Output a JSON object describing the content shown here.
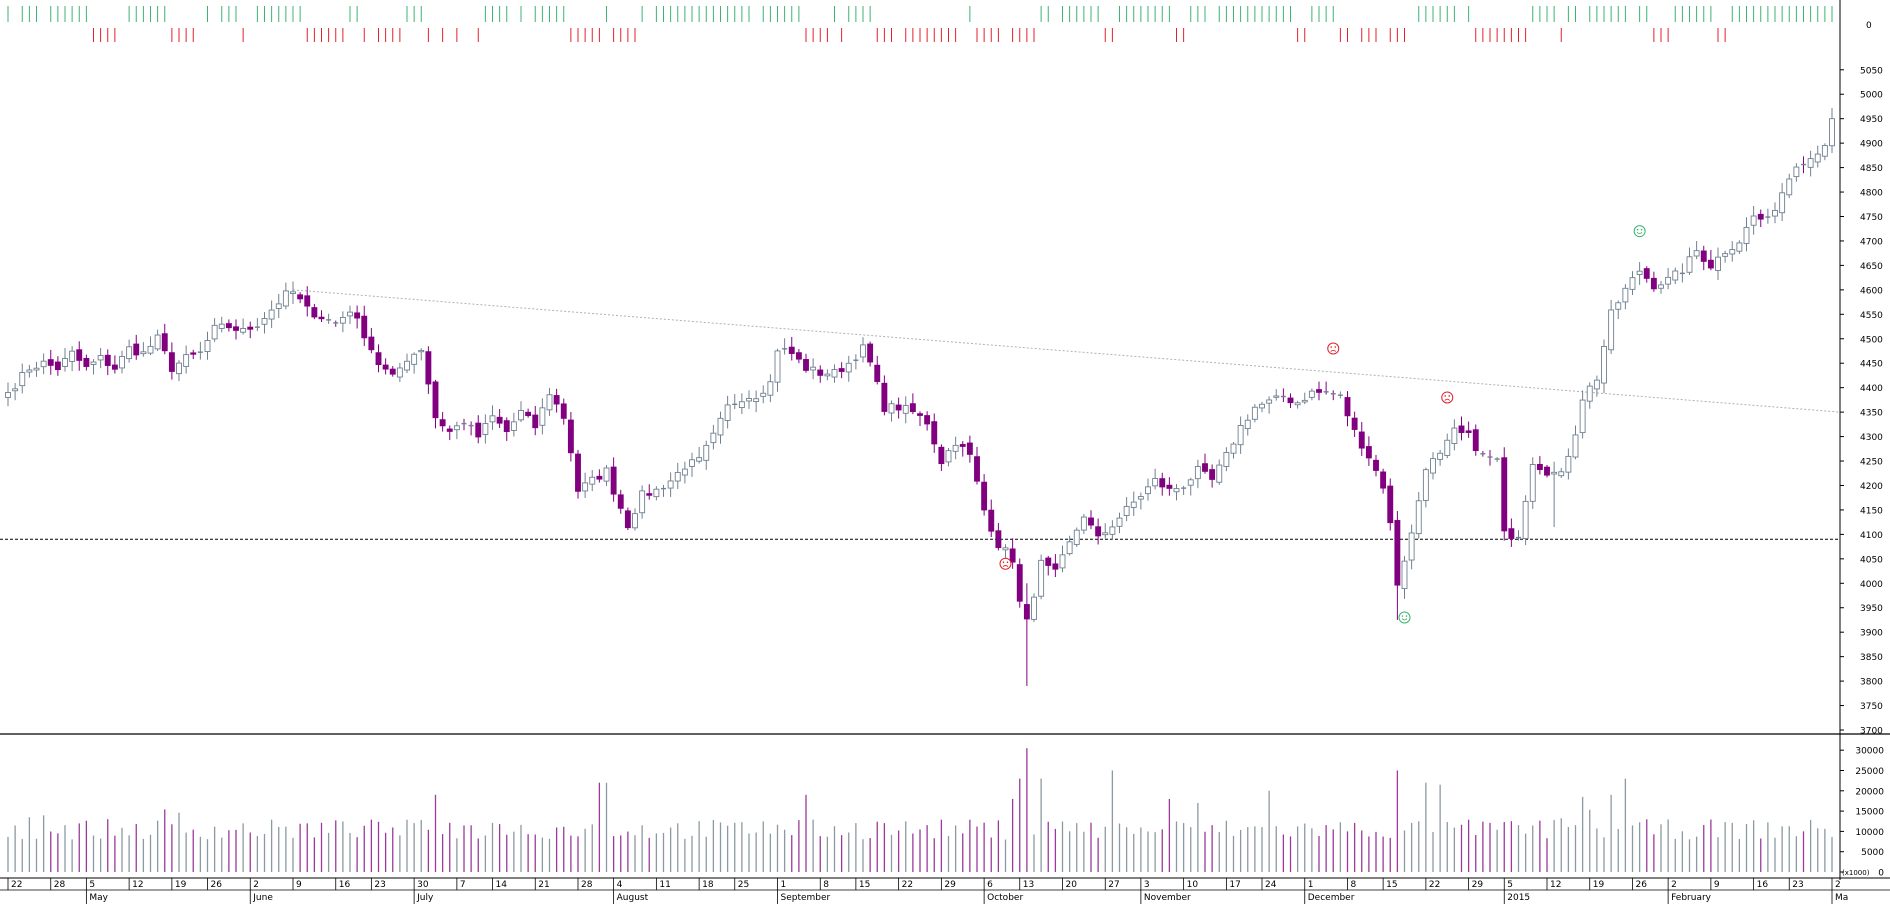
{
  "chart_data": {
    "type": "candlestick",
    "title": "",
    "price_axis": {
      "ticks": [
        3700,
        3750,
        3800,
        3850,
        3900,
        3950,
        4000,
        4050,
        4100,
        4150,
        4200,
        4250,
        4300,
        4350,
        4400,
        4450,
        4500,
        4550,
        4600,
        4650,
        4700,
        4750,
        4800,
        4850,
        4900,
        4950,
        5000,
        5050
      ],
      "range": [
        3700,
        5070
      ]
    },
    "volume_axis": {
      "ticks": [
        0,
        5000,
        10000,
        15000,
        20000,
        25000,
        30000
      ],
      "unit_label": "(x1000)",
      "range": [
        0,
        33000
      ]
    },
    "indicator_axis": {
      "ticks": [
        0
      ]
    },
    "x_axis": {
      "day_ticks": [
        "22",
        "28",
        "5",
        "12",
        "19",
        "26",
        "2",
        "9",
        "16",
        "23",
        "30",
        "7",
        "14",
        "21",
        "28",
        "4",
        "11",
        "18",
        "25",
        "1",
        "8",
        "15",
        "22",
        "29",
        "6",
        "13",
        "20",
        "27",
        "3",
        "10",
        "17",
        "24",
        "1",
        "8",
        "15",
        "22",
        "29",
        "5",
        "12",
        "19",
        "26",
        "2",
        "9",
        "16",
        "23",
        "2"
      ],
      "months": [
        {
          "label": "May",
          "index": 2
        },
        {
          "label": "June",
          "index": 6
        },
        {
          "label": "July",
          "index": 10
        },
        {
          "label": "August",
          "index": 15
        },
        {
          "label": "September",
          "index": 19
        },
        {
          "label": "October",
          "index": 24
        },
        {
          "label": "November",
          "index": 28
        },
        {
          "label": "December",
          "index": 32
        },
        {
          "label": "2015",
          "index": 37
        },
        {
          "label": "February",
          "index": 41
        },
        {
          "label": "Ma",
          "index": 45
        }
      ]
    },
    "close_path": [
      [
        0,
        4390
      ],
      [
        3,
        4440
      ],
      [
        5,
        4450
      ],
      [
        7,
        4440
      ],
      [
        9,
        4470
      ],
      [
        11,
        4440
      ],
      [
        13,
        4460
      ],
      [
        15,
        4440
      ],
      [
        17,
        4480
      ],
      [
        19,
        4470
      ],
      [
        21,
        4500
      ],
      [
        23,
        4440
      ],
      [
        25,
        4460
      ],
      [
        27,
        4470
      ],
      [
        29,
        4520
      ],
      [
        31,
        4525
      ],
      [
        33,
        4515
      ],
      [
        35,
        4530
      ],
      [
        37,
        4560
      ],
      [
        39,
        4590
      ],
      [
        40,
        4595
      ],
      [
        42,
        4560
      ],
      [
        44,
        4545
      ],
      [
        46,
        4530
      ],
      [
        48,
        4560
      ],
      [
        50,
        4510
      ],
      [
        52,
        4450
      ],
      [
        54,
        4420
      ],
      [
        56,
        4460
      ],
      [
        58,
        4480
      ],
      [
        60,
        4340
      ],
      [
        62,
        4310
      ],
      [
        64,
        4330
      ],
      [
        66,
        4300
      ],
      [
        68,
        4340
      ],
      [
        70,
        4310
      ],
      [
        72,
        4350
      ],
      [
        74,
        4320
      ],
      [
        76,
        4390
      ],
      [
        78,
        4340
      ],
      [
        79,
        4270
      ],
      [
        80,
        4190
      ],
      [
        82,
        4210
      ],
      [
        84,
        4230
      ],
      [
        85,
        4190
      ],
      [
        87,
        4120
      ],
      [
        89,
        4180
      ],
      [
        91,
        4190
      ],
      [
        93,
        4210
      ],
      [
        95,
        4240
      ],
      [
        97,
        4250
      ],
      [
        99,
        4300
      ],
      [
        101,
        4360
      ],
      [
        103,
        4380
      ],
      [
        105,
        4385
      ],
      [
        107,
        4410
      ],
      [
        108,
        4480
      ],
      [
        110,
        4470
      ],
      [
        112,
        4440
      ],
      [
        114,
        4430
      ],
      [
        116,
        4430
      ],
      [
        118,
        4450
      ],
      [
        120,
        4480
      ],
      [
        121,
        4450
      ],
      [
        123,
        4360
      ],
      [
        125,
        4360
      ],
      [
        127,
        4350
      ],
      [
        129,
        4330
      ],
      [
        131,
        4250
      ],
      [
        133,
        4290
      ],
      [
        135,
        4260
      ],
      [
        137,
        4150
      ],
      [
        139,
        4080
      ],
      [
        141,
        4050
      ],
      [
        142,
        3960
      ],
      [
        143,
        3920
      ],
      [
        145,
        4040
      ],
      [
        147,
        4020
      ],
      [
        149,
        4080
      ],
      [
        151,
        4140
      ],
      [
        153,
        4090
      ],
      [
        155,
        4120
      ],
      [
        157,
        4150
      ],
      [
        159,
        4180
      ],
      [
        161,
        4210
      ],
      [
        163,
        4190
      ],
      [
        165,
        4200
      ],
      [
        167,
        4230
      ],
      [
        169,
        4210
      ],
      [
        171,
        4260
      ],
      [
        173,
        4320
      ],
      [
        175,
        4360
      ],
      [
        177,
        4370
      ],
      [
        179,
        4380
      ],
      [
        181,
        4370
      ],
      [
        183,
        4390
      ],
      [
        185,
        4390
      ],
      [
        187,
        4380
      ],
      [
        189,
        4310
      ],
      [
        191,
        4260
      ],
      [
        193,
        4200
      ],
      [
        194,
        4120
      ],
      [
        195,
        4000
      ],
      [
        197,
        4100
      ],
      [
        199,
        4240
      ],
      [
        201,
        4260
      ],
      [
        203,
        4310
      ],
      [
        205,
        4300
      ],
      [
        207,
        4260
      ],
      [
        209,
        4250
      ],
      [
        210,
        4100
      ],
      [
        212,
        4100
      ],
      [
        214,
        4250
      ],
      [
        216,
        4230
      ],
      [
        218,
        4220
      ],
      [
        220,
        4310
      ],
      [
        221,
        4380
      ],
      [
        223,
        4420
      ],
      [
        225,
        4550
      ],
      [
        227,
        4600
      ],
      [
        229,
        4640
      ],
      [
        231,
        4610
      ],
      [
        233,
        4620
      ],
      [
        235,
        4640
      ],
      [
        237,
        4680
      ],
      [
        239,
        4650
      ],
      [
        241,
        4680
      ],
      [
        243,
        4700
      ],
      [
        245,
        4750
      ],
      [
        247,
        4740
      ],
      [
        249,
        4800
      ],
      [
        251,
        4860
      ],
      [
        253,
        4870
      ],
      [
        255,
        4900
      ],
      [
        256,
        4950
      ]
    ],
    "n_bars": 257,
    "reference_lines": [
      {
        "style": "dashed",
        "from": [
          40,
          4600
        ],
        "to": [
          256,
          4350
        ]
      },
      {
        "style": "dashed",
        "horizontal": true,
        "value": 4090
      }
    ],
    "signals": [
      {
        "kind": "sad",
        "index": 140,
        "value": 4040
      },
      {
        "kind": "sad",
        "index": 186,
        "value": 4480
      },
      {
        "kind": "smile",
        "index": 196,
        "value": 3930
      },
      {
        "kind": "sad",
        "index": 202,
        "value": 4380
      },
      {
        "kind": "smile",
        "index": 229,
        "value": 4720
      }
    ],
    "colors": {
      "down": "#800080",
      "up_body": "#ffffff",
      "up_outline": "#708090",
      "doji": "#708090",
      "indicator_up": "#3cb371",
      "indicator_down": "#e0202a",
      "volume_down": "#9b3a9b",
      "volume_up": "#8a9aa0",
      "grid": "#c0c0c0",
      "signal_sad": "#e0202a",
      "signal_smile": "#3cb371"
    }
  }
}
